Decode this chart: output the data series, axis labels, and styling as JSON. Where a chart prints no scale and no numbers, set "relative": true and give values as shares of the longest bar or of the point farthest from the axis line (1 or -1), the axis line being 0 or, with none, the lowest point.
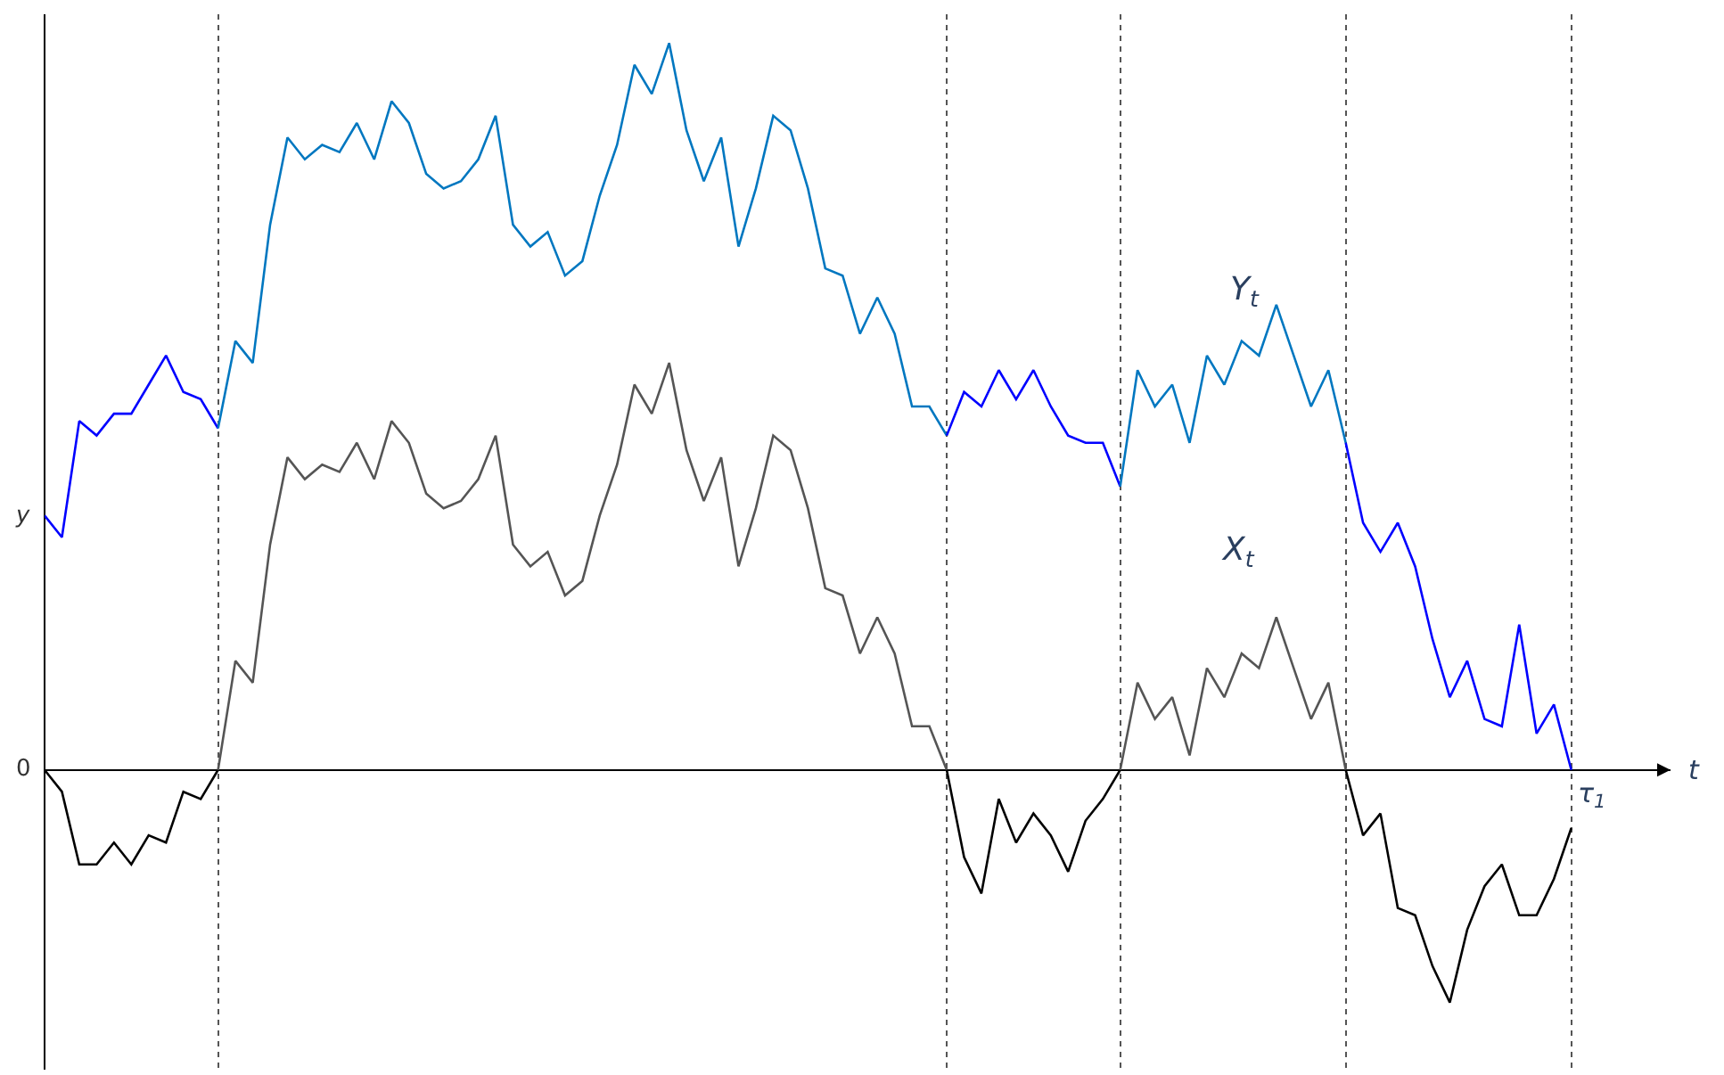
{
  "chart_data": {
    "type": "line",
    "relative": true,
    "xlabel": "t",
    "categories": [
      null,
      null,
      null,
      null,
      null,
      null,
      null,
      null,
      null,
      null,
      null,
      null,
      null,
      null,
      null,
      null,
      null,
      null,
      null,
      null,
      null,
      null,
      null,
      null,
      null,
      null,
      null,
      null,
      null,
      null,
      null,
      null,
      null,
      null,
      null,
      null,
      null,
      null,
      null,
      null,
      null,
      null,
      null,
      null,
      null,
      null,
      null,
      null,
      null,
      null,
      null,
      null,
      null,
      null,
      null,
      null,
      null,
      null,
      null,
      null,
      null,
      null,
      null,
      null,
      null,
      null,
      null,
      null,
      null,
      null,
      null,
      null,
      null,
      null,
      null,
      null,
      null,
      null,
      null,
      null,
      null,
      null,
      null,
      null,
      null,
      null,
      null,
      null,
      null
    ],
    "series": [
      {
        "color": "#0000ff",
        "values": [
          0.35,
          0.32,
          0.48,
          0.46,
          0.49,
          0.49,
          0.53,
          0.57,
          0.52,
          0.51,
          0.47,
          null,
          null,
          null,
          null,
          null,
          null,
          null,
          null,
          null,
          null,
          null,
          null,
          null,
          null,
          null,
          null,
          null,
          null,
          null,
          null,
          null,
          null,
          null,
          null,
          null,
          null,
          null,
          null,
          null,
          null,
          null,
          null,
          null,
          null,
          null,
          null,
          null,
          null,
          null,
          null,
          null,
          null,
          null,
          null,
          null,
          null,
          null,
          null,
          null,
          null,
          null,
          null,
          null,
          null,
          null,
          null,
          null,
          null,
          null,
          null,
          null,
          null,
          null,
          null,
          null,
          null,
          null,
          null,
          null,
          null,
          null,
          null,
          null,
          null,
          null,
          null,
          null,
          null
        ]
      },
      {
        "color": "#0077c0",
        "values": [
          null,
          null,
          null,
          null,
          null,
          null,
          null,
          null,
          null,
          null,
          0.47,
          0.59,
          0.56,
          0.75,
          0.87,
          0.84,
          0.86,
          0.85,
          0.89,
          0.84,
          0.92,
          0.89,
          0.82,
          0.8,
          0.81,
          0.84,
          0.9,
          0.75,
          0.72,
          0.74,
          0.68,
          0.7,
          0.79,
          0.86,
          0.97,
          0.93,
          1.0,
          0.88,
          0.81,
          0.87,
          0.72,
          0.8,
          0.9,
          0.88,
          0.8,
          0.69,
          0.68,
          0.6,
          0.65,
          0.6,
          0.5,
          0.5,
          0.46,
          null,
          null,
          null,
          null,
          null,
          null,
          null,
          null,
          null,
          null,
          null,
          null,
          null,
          null,
          null,
          null,
          null,
          null,
          null,
          null,
          null,
          null,
          null,
          null,
          null,
          null,
          null,
          null,
          null,
          null,
          null,
          null,
          null,
          null,
          null,
          null
        ]
      },
      {
        "color": "#0000ff",
        "values": [
          null,
          null,
          null,
          null,
          null,
          null,
          null,
          null,
          null,
          null,
          null,
          null,
          null,
          null,
          null,
          null,
          null,
          null,
          null,
          null,
          null,
          null,
          null,
          null,
          null,
          null,
          null,
          null,
          null,
          null,
          null,
          null,
          null,
          null,
          null,
          null,
          null,
          null,
          null,
          null,
          null,
          null,
          null,
          null,
          null,
          null,
          null,
          null,
          null,
          null,
          null,
          null,
          0.46,
          0.52,
          0.5,
          0.55,
          0.51,
          0.55,
          0.5,
          0.46,
          0.45,
          0.45,
          0.39,
          null,
          null,
          null,
          null,
          null,
          null,
          null,
          null,
          null,
          null,
          null,
          null,
          null,
          null,
          null,
          null,
          null,
          null,
          null,
          null,
          null,
          null,
          null,
          null,
          null,
          null
        ]
      },
      {
        "color": "#0077c0",
        "values": [
          null,
          null,
          null,
          null,
          null,
          null,
          null,
          null,
          null,
          null,
          null,
          null,
          null,
          null,
          null,
          null,
          null,
          null,
          null,
          null,
          null,
          null,
          null,
          null,
          null,
          null,
          null,
          null,
          null,
          null,
          null,
          null,
          null,
          null,
          null,
          null,
          null,
          null,
          null,
          null,
          null,
          null,
          null,
          null,
          null,
          null,
          null,
          null,
          null,
          null,
          null,
          null,
          null,
          null,
          null,
          null,
          null,
          null,
          null,
          null,
          null,
          null,
          0.39,
          0.55,
          0.5,
          0.53,
          0.45,
          0.57,
          0.53,
          0.59,
          0.57,
          0.64,
          0.57,
          0.5,
          0.55,
          0.45,
          null,
          null,
          null,
          null,
          null,
          null,
          null,
          null,
          null,
          null,
          null,
          null,
          null
        ]
      },
      {
        "color": "#0000ff",
        "values": [
          null,
          null,
          null,
          null,
          null,
          null,
          null,
          null,
          null,
          null,
          null,
          null,
          null,
          null,
          null,
          null,
          null,
          null,
          null,
          null,
          null,
          null,
          null,
          null,
          null,
          null,
          null,
          null,
          null,
          null,
          null,
          null,
          null,
          null,
          null,
          null,
          null,
          null,
          null,
          null,
          null,
          null,
          null,
          null,
          null,
          null,
          null,
          null,
          null,
          null,
          null,
          null,
          null,
          null,
          null,
          null,
          null,
          null,
          null,
          null,
          null,
          null,
          null,
          null,
          null,
          null,
          null,
          null,
          null,
          null,
          null,
          null,
          null,
          null,
          null,
          0.45,
          0.34,
          0.3,
          0.34,
          0.28,
          0.18,
          0.1,
          0.15,
          0.07,
          0.06,
          0.2,
          0.05,
          0.09,
          0
        ]
      },
      {
        "color": "#000000",
        "values": [
          0,
          -0.03,
          -0.13,
          -0.13,
          -0.1,
          -0.13,
          -0.09,
          -0.1,
          -0.03,
          -0.04,
          0,
          null,
          null,
          null,
          null,
          null,
          null,
          null,
          null,
          null,
          null,
          null,
          null,
          null,
          null,
          null,
          null,
          null,
          null,
          null,
          null,
          null,
          null,
          null,
          null,
          null,
          null,
          null,
          null,
          null,
          null,
          null,
          null,
          null,
          null,
          null,
          null,
          null,
          null,
          null,
          null,
          null,
          null,
          null,
          null,
          null,
          null,
          null,
          null,
          null,
          null,
          null,
          null,
          null,
          null,
          null,
          null,
          null,
          null,
          null,
          null,
          null,
          null,
          null,
          null,
          null,
          null,
          null,
          null,
          null,
          null,
          null,
          null,
          null,
          null,
          null,
          null,
          null,
          null
        ]
      },
      {
        "color": "#555555",
        "values": [
          null,
          null,
          null,
          null,
          null,
          null,
          null,
          null,
          null,
          null,
          0,
          0.15,
          0.12,
          0.31,
          0.43,
          0.4,
          0.42,
          0.41,
          0.45,
          0.4,
          0.48,
          0.45,
          0.38,
          0.36,
          0.37,
          0.4,
          0.46,
          0.31,
          0.28,
          0.3,
          0.24,
          0.26,
          0.35,
          0.42,
          0.53,
          0.49,
          0.56,
          0.44,
          0.37,
          0.43,
          0.28,
          0.36,
          0.46,
          0.44,
          0.36,
          0.25,
          0.24,
          0.16,
          0.21,
          0.16,
          0.06,
          0.06,
          0,
          null,
          null,
          null,
          null,
          null,
          null,
          null,
          null,
          null,
          null,
          null,
          null,
          null,
          null,
          null,
          null,
          null,
          null,
          null,
          null,
          null,
          null,
          null,
          null,
          null,
          null,
          null,
          null,
          null,
          null,
          null,
          null,
          null,
          null,
          null,
          null
        ]
      },
      {
        "color": "#000000",
        "values": [
          null,
          null,
          null,
          null,
          null,
          null,
          null,
          null,
          null,
          null,
          null,
          null,
          null,
          null,
          null,
          null,
          null,
          null,
          null,
          null,
          null,
          null,
          null,
          null,
          null,
          null,
          null,
          null,
          null,
          null,
          null,
          null,
          null,
          null,
          null,
          null,
          null,
          null,
          null,
          null,
          null,
          null,
          null,
          null,
          null,
          null,
          null,
          null,
          null,
          null,
          null,
          null,
          0,
          -0.12,
          -0.17,
          -0.04,
          -0.1,
          -0.06,
          -0.09,
          -0.14,
          -0.07,
          -0.04,
          0,
          null,
          null,
          null,
          null,
          null,
          null,
          null,
          null,
          null,
          null,
          null,
          null,
          null,
          null,
          null,
          null,
          null,
          null,
          null,
          null,
          null,
          null,
          null,
          null,
          null,
          null
        ]
      },
      {
        "color": "#555555",
        "values": [
          null,
          null,
          null,
          null,
          null,
          null,
          null,
          null,
          null,
          null,
          null,
          null,
          null,
          null,
          null,
          null,
          null,
          null,
          null,
          null,
          null,
          null,
          null,
          null,
          null,
          null,
          null,
          null,
          null,
          null,
          null,
          null,
          null,
          null,
          null,
          null,
          null,
          null,
          null,
          null,
          null,
          null,
          null,
          null,
          null,
          null,
          null,
          null,
          null,
          null,
          null,
          null,
          null,
          null,
          null,
          null,
          null,
          null,
          null,
          null,
          null,
          null,
          0,
          0.12,
          0.07,
          0.1,
          0.02,
          0.14,
          0.1,
          0.16,
          0.14,
          0.21,
          0.14,
          0.07,
          0.12,
          0,
          null,
          null,
          null,
          null,
          null,
          null,
          null,
          null,
          null,
          null,
          null,
          null,
          null
        ]
      },
      {
        "color": "#000000",
        "values": [
          null,
          null,
          null,
          null,
          null,
          null,
          null,
          null,
          null,
          null,
          null,
          null,
          null,
          null,
          null,
          null,
          null,
          null,
          null,
          null,
          null,
          null,
          null,
          null,
          null,
          null,
          null,
          null,
          null,
          null,
          null,
          null,
          null,
          null,
          null,
          null,
          null,
          null,
          null,
          null,
          null,
          null,
          null,
          null,
          null,
          null,
          null,
          null,
          null,
          null,
          null,
          null,
          null,
          null,
          null,
          null,
          null,
          null,
          null,
          null,
          null,
          null,
          null,
          null,
          null,
          null,
          null,
          null,
          null,
          null,
          null,
          null,
          null,
          null,
          null,
          0,
          -0.09,
          -0.06,
          -0.19,
          -0.2,
          -0.27,
          -0.32,
          -0.22,
          -0.16,
          -0.13,
          -0.2,
          -0.2,
          -0.15,
          -0.08
        ]
      }
    ],
    "grid": "x",
    "annotations": [
      "0",
      "y",
      "τ$_{1}$",
      "Y$_{t}$",
      "X$_{t}$"
    ]
  }
}
